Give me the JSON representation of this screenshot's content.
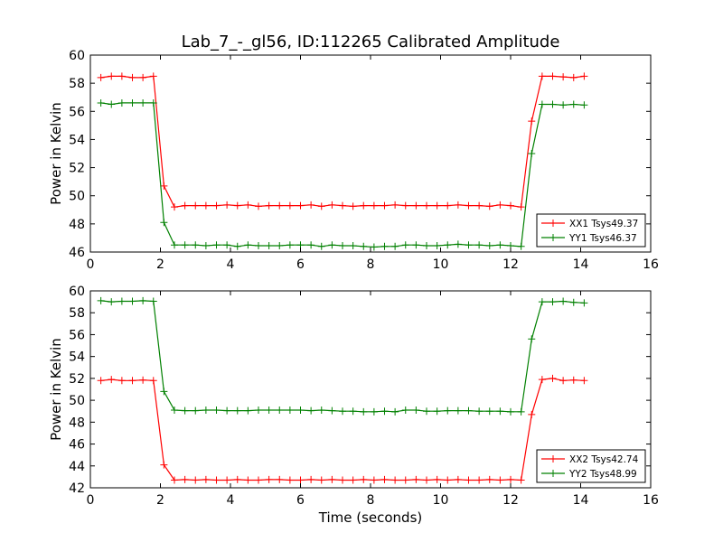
{
  "chart_data": [
    {
      "type": "line",
      "title": "Lab_7_-_gl56, ID:112265 Calibrated Amplitude",
      "xlabel": "",
      "ylabel": "Power in Kelvin",
      "xlim": [
        0,
        16
      ],
      "ylim": [
        46,
        60
      ],
      "xticks": [
        0,
        2,
        4,
        6,
        8,
        10,
        12,
        14,
        16
      ],
      "yticks": [
        46,
        48,
        50,
        52,
        54,
        56,
        58,
        60
      ],
      "grid": false,
      "legend_position": "lower-right",
      "x": [
        0.3,
        0.6,
        0.9,
        1.2,
        1.5,
        1.8,
        2.1,
        2.4,
        2.7,
        3.0,
        3.3,
        3.6,
        3.9,
        4.2,
        4.5,
        4.8,
        5.1,
        5.4,
        5.7,
        6.0,
        6.3,
        6.6,
        6.9,
        7.2,
        7.5,
        7.8,
        8.1,
        8.4,
        8.7,
        9.0,
        9.3,
        9.6,
        9.9,
        10.2,
        10.5,
        10.8,
        11.1,
        11.4,
        11.7,
        12.0,
        12.3,
        12.6,
        12.9,
        13.2,
        13.5,
        13.8,
        14.1
      ],
      "series": [
        {
          "name": "XX1 Tsys49.37",
          "color": "#ff0000",
          "values": [
            58.4,
            58.5,
            58.5,
            58.4,
            58.4,
            58.5,
            50.7,
            49.2,
            49.3,
            49.3,
            49.3,
            49.3,
            49.35,
            49.3,
            49.35,
            49.25,
            49.3,
            49.3,
            49.3,
            49.3,
            49.35,
            49.25,
            49.35,
            49.3,
            49.25,
            49.3,
            49.3,
            49.3,
            49.35,
            49.3,
            49.3,
            49.3,
            49.3,
            49.3,
            49.35,
            49.3,
            49.3,
            49.25,
            49.35,
            49.3,
            49.2,
            55.3,
            58.5,
            58.5,
            58.45,
            58.4,
            58.5
          ]
        },
        {
          "name": "YY1 Tsys46.37",
          "color": "#008000",
          "values": [
            56.6,
            56.5,
            56.6,
            56.6,
            56.6,
            56.6,
            48.1,
            46.5,
            46.5,
            46.5,
            46.45,
            46.5,
            46.5,
            46.4,
            46.5,
            46.45,
            46.45,
            46.45,
            46.5,
            46.5,
            46.5,
            46.4,
            46.5,
            46.45,
            46.45,
            46.4,
            46.35,
            46.4,
            46.4,
            46.5,
            46.5,
            46.45,
            46.45,
            46.5,
            46.55,
            46.5,
            46.5,
            46.45,
            46.5,
            46.45,
            46.4,
            53.0,
            56.5,
            56.5,
            56.45,
            56.5,
            56.45
          ]
        }
      ]
    },
    {
      "type": "line",
      "title": "",
      "xlabel": "Time (seconds)",
      "ylabel": "Power in Kelvin",
      "xlim": [
        0,
        16
      ],
      "ylim": [
        42,
        60
      ],
      "xticks": [
        0,
        2,
        4,
        6,
        8,
        10,
        12,
        14,
        16
      ],
      "yticks": [
        42,
        44,
        46,
        48,
        50,
        52,
        54,
        56,
        58,
        60
      ],
      "grid": false,
      "legend_position": "lower-right",
      "x": [
        0.3,
        0.6,
        0.9,
        1.2,
        1.5,
        1.8,
        2.1,
        2.4,
        2.7,
        3.0,
        3.3,
        3.6,
        3.9,
        4.2,
        4.5,
        4.8,
        5.1,
        5.4,
        5.7,
        6.0,
        6.3,
        6.6,
        6.9,
        7.2,
        7.5,
        7.8,
        8.1,
        8.4,
        8.7,
        9.0,
        9.3,
        9.6,
        9.9,
        10.2,
        10.5,
        10.8,
        11.1,
        11.4,
        11.7,
        12.0,
        12.3,
        12.6,
        12.9,
        13.2,
        13.5,
        13.8,
        14.1
      ],
      "series": [
        {
          "name": "XX2 Tsys42.74",
          "color": "#ff0000",
          "values": [
            51.8,
            51.9,
            51.8,
            51.8,
            51.85,
            51.8,
            44.1,
            42.7,
            42.75,
            42.7,
            42.75,
            42.7,
            42.7,
            42.75,
            42.7,
            42.7,
            42.75,
            42.75,
            42.7,
            42.7,
            42.75,
            42.7,
            42.75,
            42.7,
            42.7,
            42.75,
            42.7,
            42.75,
            42.7,
            42.7,
            42.75,
            42.7,
            42.75,
            42.7,
            42.75,
            42.7,
            42.7,
            42.75,
            42.7,
            42.75,
            42.7,
            48.7,
            51.9,
            52.0,
            51.8,
            51.85,
            51.8
          ]
        },
        {
          "name": "YY2 Tsys48.99",
          "color": "#008000",
          "values": [
            59.1,
            59.0,
            59.05,
            59.05,
            59.1,
            59.05,
            50.8,
            49.1,
            49.05,
            49.05,
            49.1,
            49.1,
            49.05,
            49.05,
            49.05,
            49.1,
            49.1,
            49.1,
            49.1,
            49.1,
            49.05,
            49.1,
            49.05,
            49.0,
            49.0,
            48.95,
            48.95,
            49.0,
            48.95,
            49.1,
            49.1,
            49.0,
            49.0,
            49.05,
            49.05,
            49.05,
            49.0,
            49.0,
            49.0,
            48.95,
            48.95,
            55.6,
            59.0,
            59.0,
            59.05,
            58.95,
            58.9
          ]
        }
      ]
    }
  ]
}
